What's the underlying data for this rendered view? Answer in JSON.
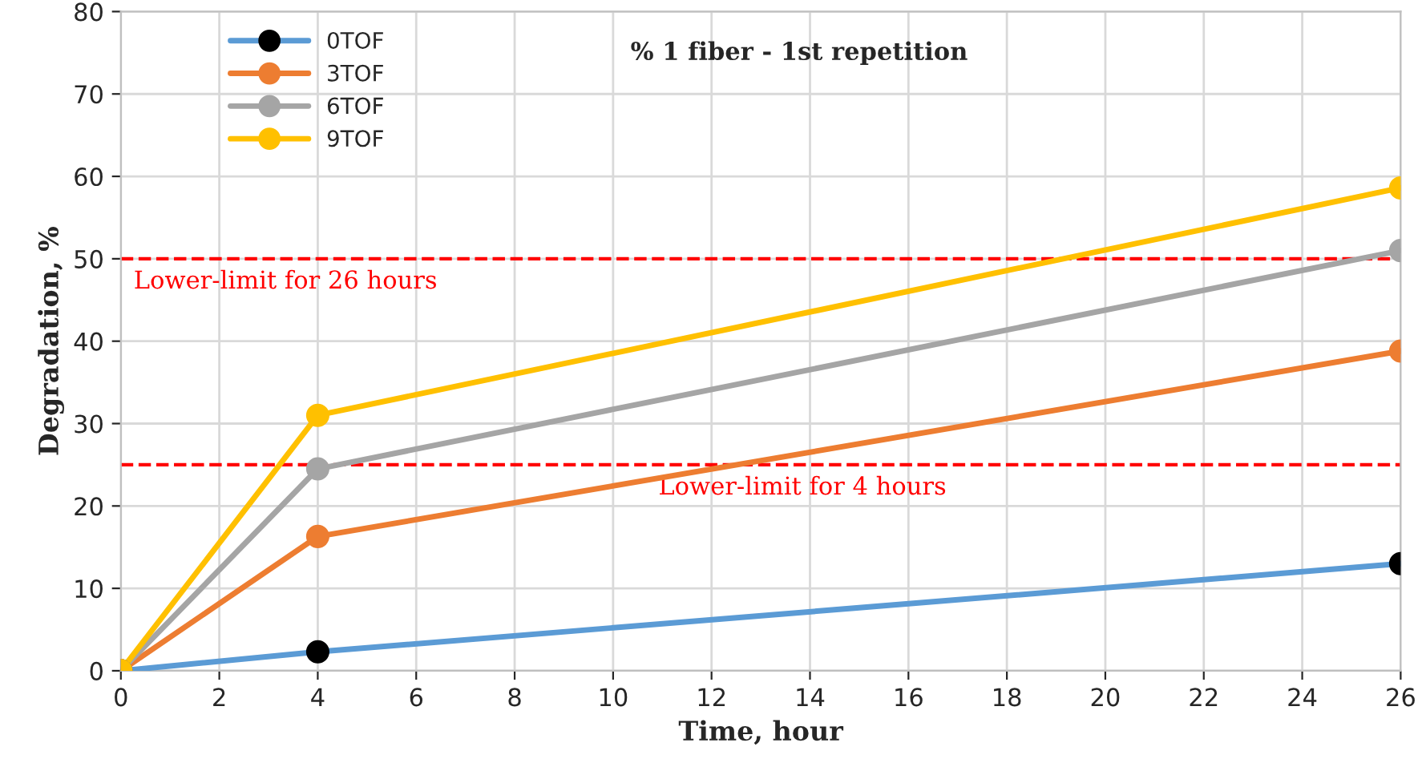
{
  "chart_data": {
    "type": "line",
    "title": "% 1 fiber - 1st repetition",
    "xlabel": "Time, hour",
    "ylabel": "Degradation, %",
    "x": [
      0,
      4,
      26
    ],
    "series": [
      {
        "name": "0TOF",
        "color": "#5b9bd5",
        "colors": [
          "#000000",
          "#000000",
          "#000000"
        ],
        "values": [
          0,
          2.3,
          13
        ]
      },
      {
        "name": "3TOF",
        "color": "#ed7d31",
        "values": [
          0,
          16.3,
          38.8
        ]
      },
      {
        "name": "6TOF",
        "color": "#a5a5a5",
        "values": [
          0,
          24.5,
          51
        ]
      },
      {
        "name": "9TOF",
        "color": "#ffc000",
        "values": [
          0,
          31,
          58.6
        ]
      }
    ],
    "xlim": [
      0,
      26
    ],
    "xticks": [
      0,
      2,
      4,
      6,
      8,
      10,
      12,
      14,
      16,
      18,
      20,
      22,
      24,
      26
    ],
    "ylim": [
      0,
      80
    ],
    "yticks": [
      0,
      10,
      20,
      30,
      40,
      50,
      60,
      70,
      80
    ],
    "ref_lines": [
      {
        "axis": "y",
        "value": 50,
        "label": "Lower-limit for 26 hours",
        "color": "#ff0000",
        "line_style": "dashed"
      },
      {
        "axis": "y",
        "value": 25,
        "label": "Lower-limit for 4 hours",
        "color": "#ff0000",
        "line_style": "dashed"
      }
    ],
    "grid": true,
    "legend": "top left",
    "marker": "circle",
    "line_style": "solid"
  }
}
